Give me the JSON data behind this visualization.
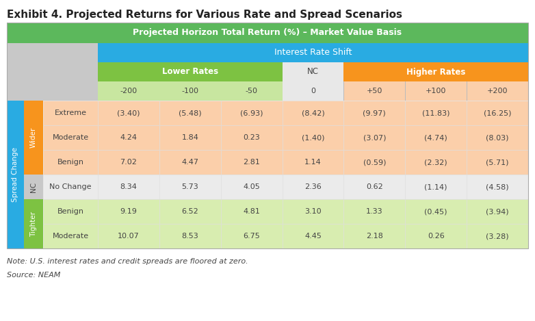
{
  "title": "Exhibit 4. Projected Returns for Various Rate and Spread Scenarios",
  "header_main": "Projected Horizon Total Return (%) – Market Value Basis",
  "header_irs": "Interest Rate Shift",
  "header_lower": "Lower Rates",
  "header_nc": "NC",
  "header_higher": "Higher Rates",
  "col_labels": [
    "-200",
    "-100",
    "-50",
    "0",
    "+50",
    "+100",
    "+200"
  ],
  "row_labels": [
    "Extreme",
    "Moderate",
    "Benign",
    "No Change",
    "Benign",
    "Moderate"
  ],
  "spread_wider": "Wider",
  "spread_nc": "NC",
  "spread_tighter": "Tighter",
  "spread_change": "Spread Change",
  "data": [
    [
      "(3.40)",
      "(5.48)",
      "(6.93)",
      "(8.42)",
      "(9.97)",
      "(11.83)",
      "(16.25)"
    ],
    [
      "4.24",
      "1.84",
      "0.23",
      "(1.40)",
      "(3.07)",
      "(4.74)",
      "(8.03)"
    ],
    [
      "7.02",
      "4.47",
      "2.81",
      "1.14",
      "(0.59)",
      "(2.32)",
      "(5.71)"
    ],
    [
      "8.34",
      "5.73",
      "4.05",
      "2.36",
      "0.62",
      "(1.14)",
      "(4.58)"
    ],
    [
      "9.19",
      "6.52",
      "4.81",
      "3.10",
      "1.33",
      "(0.45)",
      "(3.94)"
    ],
    [
      "10.07",
      "8.53",
      "6.75",
      "4.45",
      "2.18",
      "0.26",
      "(3.28)"
    ]
  ],
  "note": "Note: U.S. interest rates and credit spreads are floored at zero.",
  "source": "Source: NEAM",
  "color_green_dark": "#5CB85C",
  "color_green_light": "#7DC242",
  "color_blue": "#29ABE2",
  "color_orange": "#F7941D",
  "color_orange_light": "#FBCFAA",
  "color_green_pale": "#C8E6A0",
  "color_nc_gray": "#C8C8C8",
  "color_nc_gray_light": "#E8E8E8",
  "color_nc_row_bg": "#EBEBEB",
  "color_white": "#FFFFFF",
  "color_text_dark": "#444444",
  "color_title": "#222222",
  "color_tighter_bg": "#D8EDB0",
  "background": "#FFFFFF"
}
